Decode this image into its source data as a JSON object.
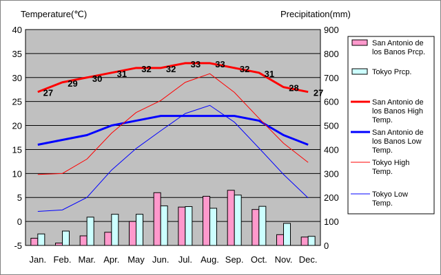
{
  "chart_data": {
    "type": "bar",
    "categories": [
      "Jan.",
      "Feb.",
      "Mar.",
      "Apr.",
      "May",
      "Jun.",
      "Jul.",
      "Aug.",
      "Sep.",
      "Oct.",
      "Nov.",
      "Dec."
    ],
    "left_axis": {
      "label": "Temperature(℃)",
      "ylim": [
        -5,
        40
      ],
      "ticks": [
        -5,
        0,
        5,
        10,
        15,
        20,
        25,
        30,
        35,
        40
      ]
    },
    "right_axis": {
      "label": "Precipitation(mm)",
      "ylim": [
        0,
        900
      ],
      "ticks": [
        0,
        100,
        200,
        300,
        400,
        500,
        600,
        700,
        800,
        900
      ]
    },
    "grid": true,
    "legend_position": "right",
    "series": [
      {
        "name": "San Antonio de los Banos Prcp.",
        "kind": "bar",
        "axis": "right",
        "color": "#ff99cc",
        "values": [
          30,
          10,
          40,
          55,
          100,
          220,
          160,
          205,
          230,
          150,
          45,
          35
        ]
      },
      {
        "name": "Tokyo Prcp.",
        "kind": "bar",
        "axis": "right",
        "color": "#ccffff",
        "values": [
          48,
          60,
          118,
          130,
          130,
          165,
          162,
          155,
          210,
          163,
          92,
          38
        ]
      },
      {
        "name": "San Antonio de los Banos High Temp.",
        "kind": "line",
        "axis": "left",
        "color": "#ff0000",
        "width": 3,
        "values": [
          27,
          29,
          30,
          31,
          32,
          32,
          33,
          33,
          32,
          31,
          28,
          27
        ],
        "labels": [
          "27",
          "29",
          "30",
          "31",
          "32",
          "32",
          "33",
          "33",
          "32",
          "31",
          "28",
          "27"
        ]
      },
      {
        "name": "San Antonio de los Banos Low Temp.",
        "kind": "line",
        "axis": "left",
        "color": "#0000ff",
        "width": 3,
        "values": [
          16,
          17,
          18,
          20,
          21,
          22,
          22,
          22,
          22,
          21,
          18,
          16
        ]
      },
      {
        "name": "Tokyo High Temp.",
        "kind": "line",
        "axis": "left",
        "color": "#ff0000",
        "width": 1,
        "values": [
          9.8,
          10,
          13,
          18.4,
          22.7,
          25.2,
          29,
          30.8,
          26.9,
          21.5,
          16.3,
          12.3
        ]
      },
      {
        "name": "Tokyo Low Temp.",
        "kind": "line",
        "axis": "left",
        "color": "#0000ff",
        "width": 1,
        "values": [
          2.1,
          2.4,
          5,
          10.7,
          15.2,
          18.9,
          22.5,
          24.2,
          20.7,
          15.3,
          9.8,
          4.9
        ]
      }
    ]
  },
  "legend": {
    "prcp_sa": [
      "San Antonio de",
      "los Banos Prcp."
    ],
    "prcp_tokyo": [
      "Tokyo Prcp."
    ],
    "high_sa": [
      "San Antonio de",
      "los Banos High",
      "Temp."
    ],
    "low_sa": [
      "San Antonio de",
      "los Banos Low",
      "Temp."
    ],
    "high_tokyo": [
      "Tokyo High",
      "Temp."
    ],
    "low_tokyo": [
      "Tokyo Low",
      "Temp."
    ]
  },
  "colors": {
    "plot_bg": "#c0c0c0",
    "grid": "#000000"
  }
}
